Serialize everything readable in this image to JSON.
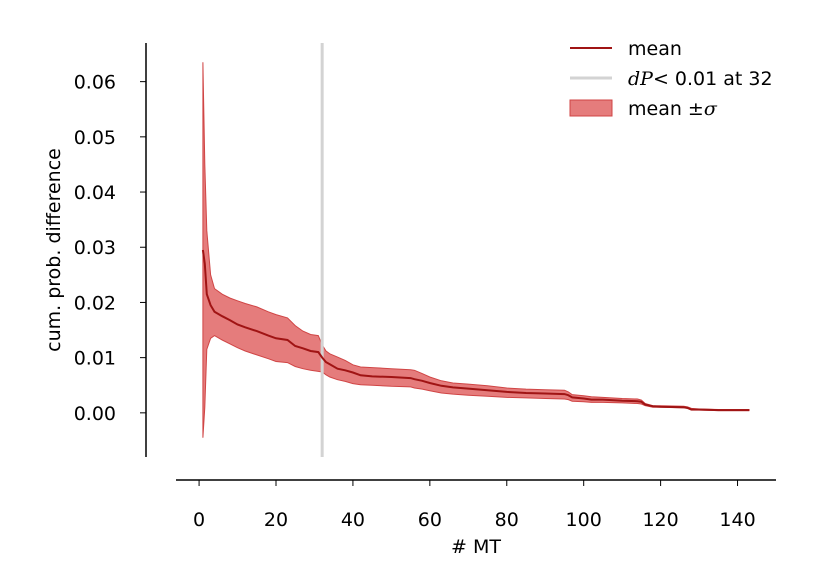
{
  "chart_data": {
    "type": "line",
    "xlabel": "# MT",
    "ylabel": "cum. prob. difference",
    "xlim": [
      -6,
      150
    ],
    "ylim": [
      -0.008,
      0.067
    ],
    "xticks": [
      0,
      20,
      40,
      60,
      80,
      100,
      120,
      140
    ],
    "yticks": [
      0.0,
      0.01,
      0.02,
      0.03,
      0.04,
      0.05,
      0.06
    ],
    "ytick_labels": [
      "0.00",
      "0.01",
      "0.02",
      "0.03",
      "0.04",
      "0.05",
      "0.06"
    ],
    "grid": false,
    "legend_position": "top-right",
    "colors": {
      "mean": "#a01414",
      "band": "#e06565",
      "threshold": "#d3d3d3"
    },
    "threshold_x": 32,
    "legend": {
      "mean": "mean",
      "threshold_prefix": "dP",
      "threshold_suffix": "< 0.01 at 32",
      "band_prefix": "mean ±",
      "band_symbol": "σ"
    },
    "series": [
      {
        "name": "mean",
        "x": [
          1,
          1.5,
          2,
          3,
          4,
          6,
          8,
          10,
          12,
          15,
          18,
          20,
          23,
          25,
          27,
          29,
          31,
          32,
          33,
          34,
          36,
          38,
          40,
          42,
          45,
          50,
          55,
          56,
          58,
          60,
          63,
          66,
          70,
          75,
          80,
          85,
          90,
          95,
          96,
          97,
          100,
          102,
          105,
          110,
          114,
          115,
          116,
          118,
          120,
          126,
          127,
          128,
          130,
          135,
          140,
          143
        ],
        "y": [
          0.0295,
          0.027,
          0.0215,
          0.0195,
          0.0183,
          0.0175,
          0.0168,
          0.016,
          0.0155,
          0.0148,
          0.014,
          0.0135,
          0.0132,
          0.0121,
          0.0117,
          0.0112,
          0.011,
          0.01,
          0.0092,
          0.0088,
          0.008,
          0.0077,
          0.0073,
          0.0068,
          0.0066,
          0.0065,
          0.0063,
          0.0061,
          0.0058,
          0.0054,
          0.0049,
          0.0046,
          0.0044,
          0.0041,
          0.0038,
          0.0036,
          0.0035,
          0.0034,
          0.0032,
          0.0028,
          0.0026,
          0.0024,
          0.0024,
          0.0022,
          0.0021,
          0.002,
          0.0015,
          0.0012,
          0.0011,
          0.001,
          0.0009,
          0.0006,
          0.0006,
          0.0005,
          0.0005,
          0.0005
        ]
      },
      {
        "name": "mean ±σ",
        "x": [
          1,
          1.5,
          2,
          3,
          4,
          6,
          8,
          10,
          12,
          15,
          18,
          20,
          23,
          25,
          27,
          29,
          31,
          32,
          33,
          34,
          36,
          38,
          40,
          42,
          45,
          50,
          55,
          56,
          58,
          60,
          63,
          66,
          70,
          75,
          80,
          85,
          90,
          95,
          96,
          97,
          100,
          102,
          105,
          110,
          114,
          115,
          116,
          118,
          120,
          126,
          127,
          128,
          130,
          135,
          140,
          143
        ],
        "upper": [
          0.0635,
          0.045,
          0.033,
          0.025,
          0.0225,
          0.0215,
          0.0208,
          0.0203,
          0.0198,
          0.0192,
          0.0183,
          0.0178,
          0.0172,
          0.0158,
          0.0148,
          0.0142,
          0.014,
          0.0123,
          0.0112,
          0.0107,
          0.0101,
          0.0095,
          0.0087,
          0.0083,
          0.0082,
          0.008,
          0.0078,
          0.0077,
          0.0071,
          0.0065,
          0.0058,
          0.0054,
          0.0052,
          0.0049,
          0.0045,
          0.0043,
          0.0042,
          0.0041,
          0.0038,
          0.0033,
          0.0031,
          0.0029,
          0.0028,
          0.0026,
          0.0025,
          0.0023,
          0.0017,
          0.0013,
          0.0013,
          0.0012,
          0.0011,
          0.0008,
          0.0007,
          0.0006,
          0.0006,
          0.0006
        ],
        "lower": [
          -0.0045,
          0.001,
          0.0115,
          0.0135,
          0.014,
          0.0132,
          0.0125,
          0.0118,
          0.0112,
          0.0105,
          0.0098,
          0.0093,
          0.0091,
          0.0084,
          0.008,
          0.0077,
          0.0075,
          0.0074,
          0.0069,
          0.0065,
          0.006,
          0.0057,
          0.0053,
          0.0051,
          0.005,
          0.0048,
          0.0047,
          0.0045,
          0.0043,
          0.004,
          0.0036,
          0.0034,
          0.0032,
          0.003,
          0.0028,
          0.0027,
          0.0026,
          0.0025,
          0.0024,
          0.0021,
          0.002,
          0.0019,
          0.0019,
          0.0018,
          0.0017,
          0.0016,
          0.0013,
          0.001,
          0.001,
          0.0009,
          0.0008,
          0.0005,
          0.0005,
          0.0004,
          0.0004,
          0.0004
        ]
      }
    ]
  }
}
